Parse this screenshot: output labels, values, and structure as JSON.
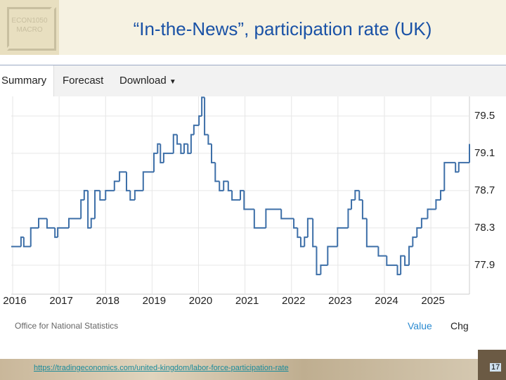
{
  "header": {
    "logo": [
      "ECON1050",
      "MACRO"
    ],
    "title": "“In-the-News”, participation rate (UK)"
  },
  "tabs": [
    "Summary",
    "Forecast",
    "Download"
  ],
  "chart_data": {
    "type": "line",
    "step": "post",
    "color": "#3d6fa8",
    "x": [
      2015.97,
      2016.18,
      2016.24,
      2016.39,
      2016.56,
      2016.74,
      2016.91,
      2016.97,
      2017.21,
      2017.47,
      2017.54,
      2017.62,
      2017.69,
      2017.77,
      2017.88,
      2018.0,
      2018.19,
      2018.3,
      2018.45,
      2018.53,
      2018.63,
      2018.81,
      2019.04,
      2019.12,
      2019.18,
      2019.25,
      2019.46,
      2019.54,
      2019.62,
      2019.69,
      2019.77,
      2019.84,
      2019.9,
      2020.01,
      2020.07,
      2020.13,
      2020.21,
      2020.28,
      2020.36,
      2020.45,
      2020.54,
      2020.64,
      2020.72,
      2020.9,
      2020.98,
      2021.2,
      2021.45,
      2021.78,
      2022.05,
      2022.13,
      2022.2,
      2022.28,
      2022.35,
      2022.46,
      2022.54,
      2022.63,
      2022.78,
      2022.99,
      2023.22,
      2023.29,
      2023.37,
      2023.46,
      2023.53,
      2023.62,
      2023.87,
      2024.05,
      2024.28,
      2024.35,
      2024.44,
      2024.53,
      2024.61,
      2024.7,
      2024.8,
      2024.93,
      2025.11,
      2025.21,
      2025.29,
      2025.53,
      2025.6,
      2025.83
    ],
    "values": [
      78.1,
      78.2,
      78.1,
      78.3,
      78.4,
      78.3,
      78.2,
      78.3,
      78.4,
      78.6,
      78.7,
      78.3,
      78.4,
      78.7,
      78.6,
      78.7,
      78.8,
      78.9,
      78.7,
      78.6,
      78.7,
      78.9,
      79.1,
      79.2,
      79.0,
      79.1,
      79.3,
      79.2,
      79.1,
      79.2,
      79.1,
      79.3,
      79.4,
      79.5,
      79.7,
      79.3,
      79.2,
      79.0,
      78.8,
      78.7,
      78.8,
      78.7,
      78.6,
      78.7,
      78.5,
      78.3,
      78.5,
      78.4,
      78.3,
      78.2,
      78.1,
      78.2,
      78.4,
      78.1,
      77.8,
      77.9,
      78.1,
      78.3,
      78.5,
      78.6,
      78.7,
      78.6,
      78.4,
      78.1,
      78.0,
      77.9,
      77.8,
      78.0,
      77.9,
      78.1,
      78.2,
      78.3,
      78.4,
      78.5,
      78.6,
      78.7,
      79.0,
      78.9,
      79.0,
      79.2
    ],
    "xlim": [
      2015.97,
      2025.83
    ],
    "ylim": [
      77.59,
      79.71
    ],
    "xticks": [
      2016,
      2017,
      2018,
      2019,
      2020,
      2021,
      2022,
      2023,
      2024,
      2025
    ],
    "yticks": [
      77.9,
      78.3,
      78.7,
      79.1,
      79.5
    ],
    "grid": true,
    "source": "Office for National Statistics"
  },
  "toggles": [
    "Value",
    "Chg"
  ],
  "footer": {
    "url": "https://tradingeconomics.com/united-kingdom/labor-force-participation-rate",
    "page": "17"
  }
}
